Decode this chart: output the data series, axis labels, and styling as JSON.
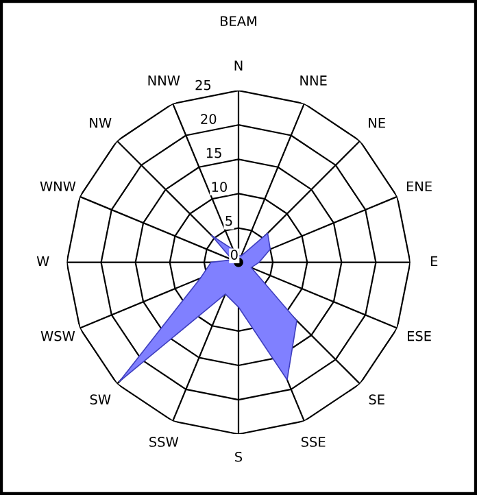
{
  "chart_data": {
    "type": "radar",
    "title": "BEAM",
    "categories": [
      "N",
      "NNE",
      "NE",
      "ENE",
      "E",
      "ESE",
      "SE",
      "SSE",
      "S",
      "SSW",
      "SW",
      "WSW",
      "W",
      "WNW",
      "NW",
      "NNW"
    ],
    "series": [
      {
        "color": "#8080ff",
        "values": [
          1,
          1,
          6,
          5,
          3,
          2,
          12,
          18.5,
          6.5,
          5,
          24.5,
          6,
          4,
          1,
          5.5,
          2
        ]
      }
    ],
    "ylim": [
      0,
      25
    ],
    "yticks": [
      0,
      5,
      10,
      15,
      20,
      25
    ],
    "grid": true
  }
}
